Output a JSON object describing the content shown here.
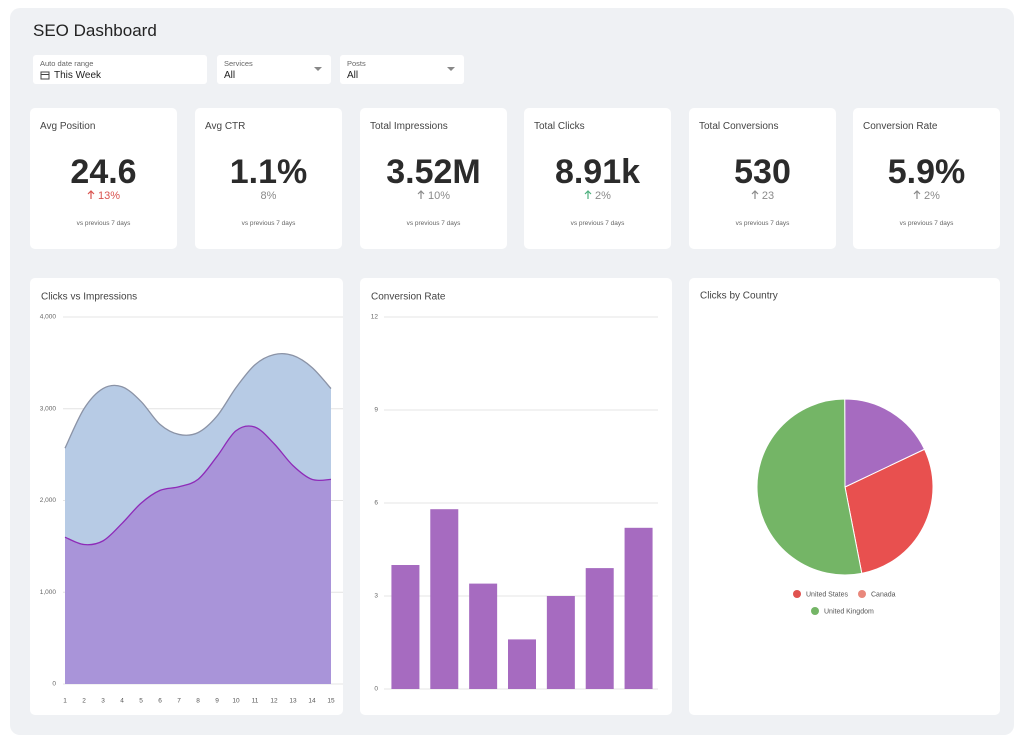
{
  "header": {
    "title": "SEO Dashboard"
  },
  "filters": [
    {
      "label": "Auto date range",
      "value": "This Week"
    },
    {
      "label": "Services",
      "value": "All"
    },
    {
      "label": "Posts",
      "value": "All"
    }
  ],
  "kpis": [
    {
      "label": "Avg Position",
      "value": "24.6",
      "change": "13%",
      "change_color": "#d9534f",
      "arrow_color": "#d9534f",
      "note": "vs previous 7 days"
    },
    {
      "label": "Avg CTR",
      "value": "1.1%",
      "change": "8%",
      "change_color": "#8a8a8a",
      "note": "vs previous 7 days"
    },
    {
      "label": "Total Impressions",
      "value": "3.52M",
      "change": "10%",
      "change_color": "#8a8a8a",
      "arrow_color": "#8a8a8a",
      "note": "vs previous 7 days"
    },
    {
      "label": "Total Clicks",
      "value": "8.91k",
      "change": "2%",
      "change_color": "#8a8a8a",
      "arrow_color": "#4caf7d",
      "note": "vs previous 7 days"
    },
    {
      "label": "Total Conversions",
      "value": "530",
      "change": "23",
      "change_color": "#8a8a8a",
      "arrow_color": "#8a8a8a",
      "note": "vs previous 7 days"
    },
    {
      "label": "Conversion Rate",
      "value": "5.9%",
      "change": "2%",
      "change_color": "#8a8a8a",
      "arrow_color": "#8a8a8a",
      "note": "vs previous 7 days"
    }
  ],
  "chart_data": [
    {
      "type": "area",
      "title": "Clicks vs Impressions",
      "x": [
        1,
        2,
        3,
        4,
        5,
        6,
        7,
        8,
        9,
        10,
        11,
        12,
        13,
        14,
        15
      ],
      "series": [
        {
          "color": "#b7cbe5",
          "line_color": "#8b93a6",
          "values": [
            2570,
            3000,
            3220,
            3240,
            3080,
            2830,
            2720,
            2740,
            2920,
            3230,
            3480,
            3590,
            3580,
            3450,
            3220
          ]
        },
        {
          "color": "#a994d9",
          "line_color": "#8e2bb8",
          "values": [
            1600,
            1520,
            1560,
            1750,
            1970,
            2110,
            2150,
            2230,
            2480,
            2760,
            2800,
            2620,
            2380,
            2230,
            2230
          ]
        }
      ],
      "xlim": [
        1,
        15
      ],
      "xticks": [
        1,
        2,
        3,
        4,
        5,
        6,
        7,
        8,
        9,
        10,
        11,
        12,
        13,
        14,
        15
      ],
      "ylim": [
        0,
        4000
      ],
      "yticks": [
        0,
        {
          "value": 1000,
          "label": "1,000"
        },
        {
          "value": 2000,
          "label": "2,000"
        },
        {
          "value": 3000,
          "label": "3,000"
        },
        {
          "value": 4000,
          "label": "4,000"
        }
      ],
      "grid": true
    },
    {
      "type": "bar",
      "title": "Conversion Rate",
      "categories": [
        null,
        null,
        null,
        null,
        null,
        null,
        null
      ],
      "values": [
        4.0,
        5.8,
        3.4,
        1.6,
        3.0,
        3.9,
        5.2
      ],
      "color": "#a66bc0",
      "ylim": [
        0,
        12
      ],
      "yticks": [
        0,
        3,
        6,
        9,
        12
      ],
      "grid": true
    },
    {
      "type": "pie",
      "title": "Clicks by Country",
      "categories": [
        "United States",
        "Canada",
        "United Kingdom"
      ],
      "values": [
        29,
        18,
        53
      ],
      "colors": [
        "#e8504f",
        "#a66bc0",
        "#74b566"
      ],
      "legend_colors": [
        "#e0524f",
        "#e9887c",
        "#74b566"
      ]
    }
  ]
}
